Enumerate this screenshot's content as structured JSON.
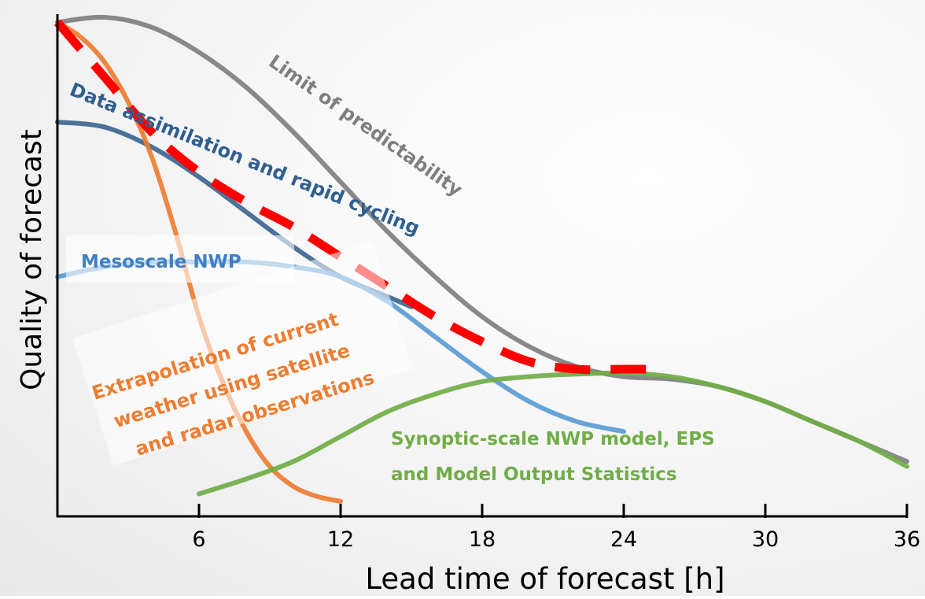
{
  "chart_data": {
    "type": "line",
    "xlabel": "Lead time of forecast [h]",
    "ylabel": "Quality of forecast",
    "xlim": [
      0,
      36
    ],
    "ylim": [
      0,
      10
    ],
    "xticks": [
      "6",
      "12",
      "18",
      "24",
      "30",
      "36"
    ],
    "grid": false,
    "series": [
      {
        "name": "Limit of predictability",
        "color": "#7f7f7f",
        "dashed": false,
        "points": [
          [
            0,
            9.9
          ],
          [
            2,
            10
          ],
          [
            4,
            9.8
          ],
          [
            6,
            9.3
          ],
          [
            8,
            8.6
          ],
          [
            10,
            7.7
          ],
          [
            12,
            6.7
          ],
          [
            14,
            5.7
          ],
          [
            16,
            4.8
          ],
          [
            18,
            4.0
          ],
          [
            20,
            3.4
          ],
          [
            22,
            3.0
          ],
          [
            24,
            2.8
          ],
          [
            26,
            2.75
          ],
          [
            28,
            2.6
          ],
          [
            30,
            2.3
          ],
          [
            32,
            1.9
          ],
          [
            34,
            1.5
          ],
          [
            36,
            1.1
          ]
        ]
      },
      {
        "name": "Data assimilation and rapid cycling",
        "color": "#3c6690",
        "dashed": false,
        "points": [
          [
            0,
            7.9
          ],
          [
            2,
            7.8
          ],
          [
            4,
            7.4
          ],
          [
            6,
            6.8
          ],
          [
            8,
            6.1
          ],
          [
            10,
            5.4
          ],
          [
            12,
            4.8
          ],
          [
            14,
            4.4
          ],
          [
            15,
            4.2
          ]
        ]
      },
      {
        "name": "Mesoscale NWP",
        "color": "#5b9bd5",
        "dashed": false,
        "points": [
          [
            0,
            4.8
          ],
          [
            2,
            5.0
          ],
          [
            4,
            5.1
          ],
          [
            6,
            5.1
          ],
          [
            8,
            5.1
          ],
          [
            10,
            5.0
          ],
          [
            12,
            4.8
          ],
          [
            14,
            4.3
          ],
          [
            16,
            3.6
          ],
          [
            18,
            2.9
          ],
          [
            20,
            2.3
          ],
          [
            22,
            1.9
          ],
          [
            24,
            1.7
          ]
        ]
      },
      {
        "name": "Extrapolation of current weather using satellite and radar observations",
        "color": "#ed7d31",
        "dashed": false,
        "points": [
          [
            0,
            9.9
          ],
          [
            1,
            9.6
          ],
          [
            2,
            9.1
          ],
          [
            3,
            8.3
          ],
          [
            4,
            7.2
          ],
          [
            5,
            5.7
          ],
          [
            6,
            4.0
          ],
          [
            7,
            2.7
          ],
          [
            8,
            1.7
          ],
          [
            9,
            1.0
          ],
          [
            10,
            0.6
          ],
          [
            11,
            0.4
          ],
          [
            12,
            0.3
          ]
        ]
      },
      {
        "name": "Synoptic-scale NWP model, EPS and Model Output Statistics",
        "color": "#70ad47",
        "dashed": false,
        "points": [
          [
            6,
            0.45
          ],
          [
            8,
            0.75
          ],
          [
            10,
            1.1
          ],
          [
            12,
            1.6
          ],
          [
            14,
            2.1
          ],
          [
            16,
            2.45
          ],
          [
            18,
            2.7
          ],
          [
            20,
            2.8
          ],
          [
            22,
            2.85
          ],
          [
            24,
            2.87
          ],
          [
            26,
            2.8
          ],
          [
            28,
            2.6
          ],
          [
            30,
            2.3
          ],
          [
            32,
            1.9
          ],
          [
            34,
            1.5
          ],
          [
            36,
            1.0
          ]
        ]
      },
      {
        "name": "",
        "color": "#ff0000",
        "dashed": true,
        "points": [
          [
            0,
            9.9
          ],
          [
            2,
            8.8
          ],
          [
            4,
            7.7
          ],
          [
            6,
            6.9
          ],
          [
            8,
            6.3
          ],
          [
            10,
            5.8
          ],
          [
            12,
            5.2
          ],
          [
            14,
            4.6
          ],
          [
            16,
            4.0
          ],
          [
            18,
            3.5
          ],
          [
            20,
            3.1
          ],
          [
            22,
            2.95
          ],
          [
            24,
            2.95
          ],
          [
            25,
            2.95
          ]
        ]
      }
    ],
    "annotations": [
      "Limit of predictability",
      "Data assimilation and rapid cycling",
      "Mesoscale NWP",
      "Extrapolation of current",
      "weather using satellite",
      "and radar observations",
      "Synoptic-scale NWP model, EPS",
      "and Model Output Statistics"
    ]
  }
}
